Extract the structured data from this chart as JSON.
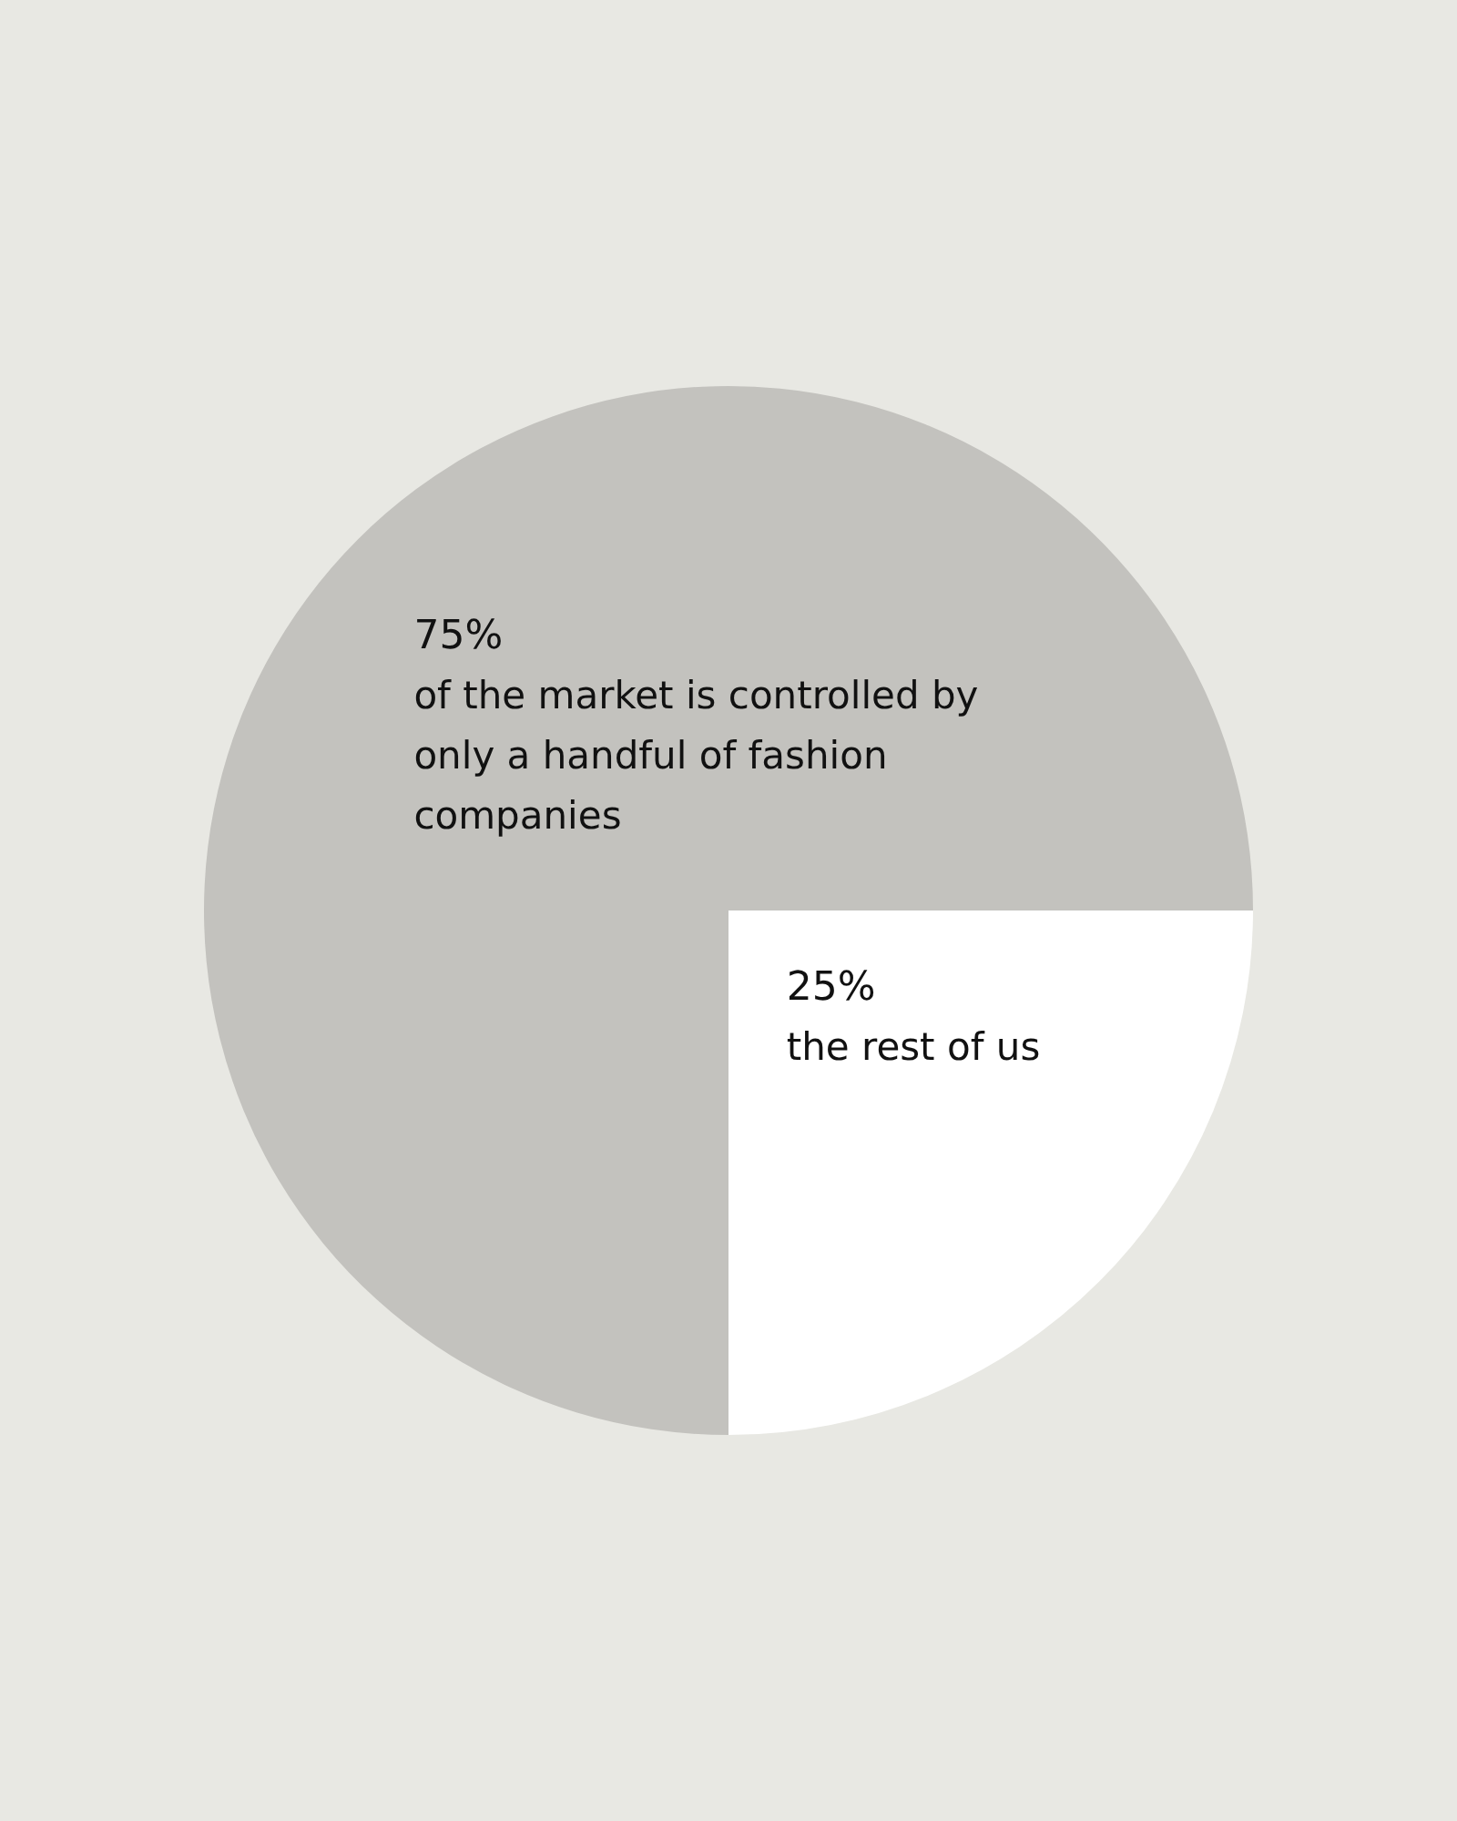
{
  "chart_data": {
    "type": "pie",
    "categories": [
      "of the market is controlled by only a handful of fashion companies",
      "the rest of us"
    ],
    "values": [
      75,
      25
    ],
    "colors": [
      "#c3c2be",
      "#ffffff"
    ],
    "value_labels": [
      "75%",
      "25%"
    ],
    "legend": false
  }
}
